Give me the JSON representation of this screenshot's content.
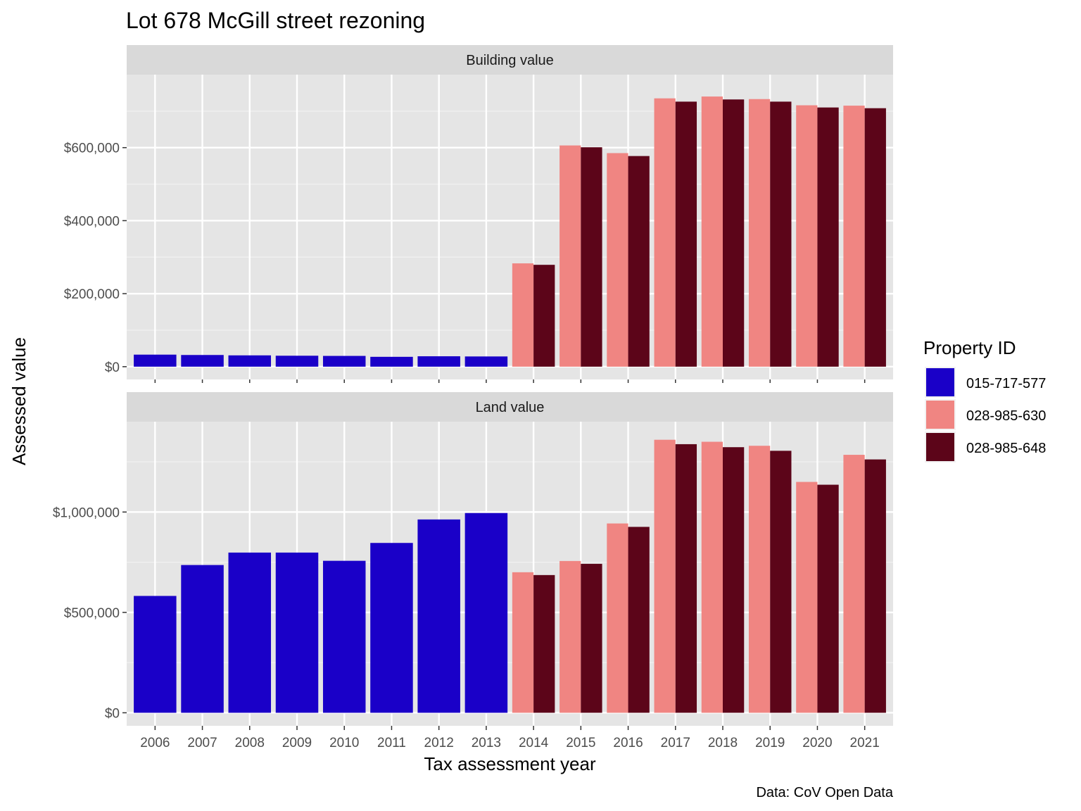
{
  "chart_data": {
    "type": "bar",
    "title": "Lot 678 McGill street rezoning",
    "xlabel": "Tax assessment year",
    "ylabel": "Assessed value",
    "caption": "Data: CoV Open Data",
    "legend": {
      "title": "Property ID",
      "position": "right",
      "entries": [
        {
          "name": "015-717-577",
          "color": "#1a00c8"
        },
        {
          "name": "028-985-630",
          "color": "#f08582"
        },
        {
          "name": "028-985-648",
          "color": "#5c0519"
        }
      ]
    },
    "categories": [
      "2006",
      "2007",
      "2008",
      "2009",
      "2010",
      "2011",
      "2012",
      "2013",
      "2014",
      "2015",
      "2016",
      "2017",
      "2018",
      "2019",
      "2020",
      "2021"
    ],
    "grid": true,
    "panels": [
      {
        "strip": "Building value",
        "ylim": [
          -35000,
          800000
        ],
        "yticks": [
          0,
          200000,
          400000,
          600000
        ],
        "ytick_labels": [
          "$0",
          "$200,000",
          "$400,000",
          "$600,000"
        ],
        "series": [
          {
            "name": "015-717-577",
            "values": [
              33000,
              32000,
              31000,
              30000,
              29500,
              27000,
              28500,
              28000,
              null,
              null,
              null,
              null,
              null,
              null,
              null,
              null
            ]
          },
          {
            "name": "028-985-630",
            "values": [
              null,
              null,
              null,
              null,
              null,
              null,
              null,
              null,
              283000,
              606000,
              585000,
              735000,
              740000,
              733000,
              716000,
              715000
            ]
          },
          {
            "name": "028-985-648",
            "values": [
              null,
              null,
              null,
              null,
              null,
              null,
              null,
              null,
              279000,
              601000,
              577000,
              726000,
              732000,
              726000,
              710000,
              708000
            ]
          }
        ]
      },
      {
        "strip": "Land value",
        "ylim": [
          -65000,
          1450000
        ],
        "yticks": [
          0,
          500000,
          1000000
        ],
        "ytick_labels": [
          "$0",
          "$500,000",
          "$1,000,000"
        ],
        "series": [
          {
            "name": "015-717-577",
            "values": [
              582000,
              736000,
              798000,
              798000,
              757000,
              846000,
              963000,
              995000,
              null,
              null,
              null,
              null,
              null,
              null,
              null,
              null
            ]
          },
          {
            "name": "028-985-630",
            "values": [
              null,
              null,
              null,
              null,
              null,
              null,
              null,
              null,
              700000,
              756000,
              943000,
              1360000,
              1350000,
              1330000,
              1150000,
              1285000
            ]
          },
          {
            "name": "028-985-648",
            "values": [
              null,
              null,
              null,
              null,
              null,
              null,
              null,
              null,
              686000,
              742000,
              926000,
              1338000,
              1323000,
              1305000,
              1136000,
              1262000
            ]
          }
        ]
      }
    ]
  }
}
